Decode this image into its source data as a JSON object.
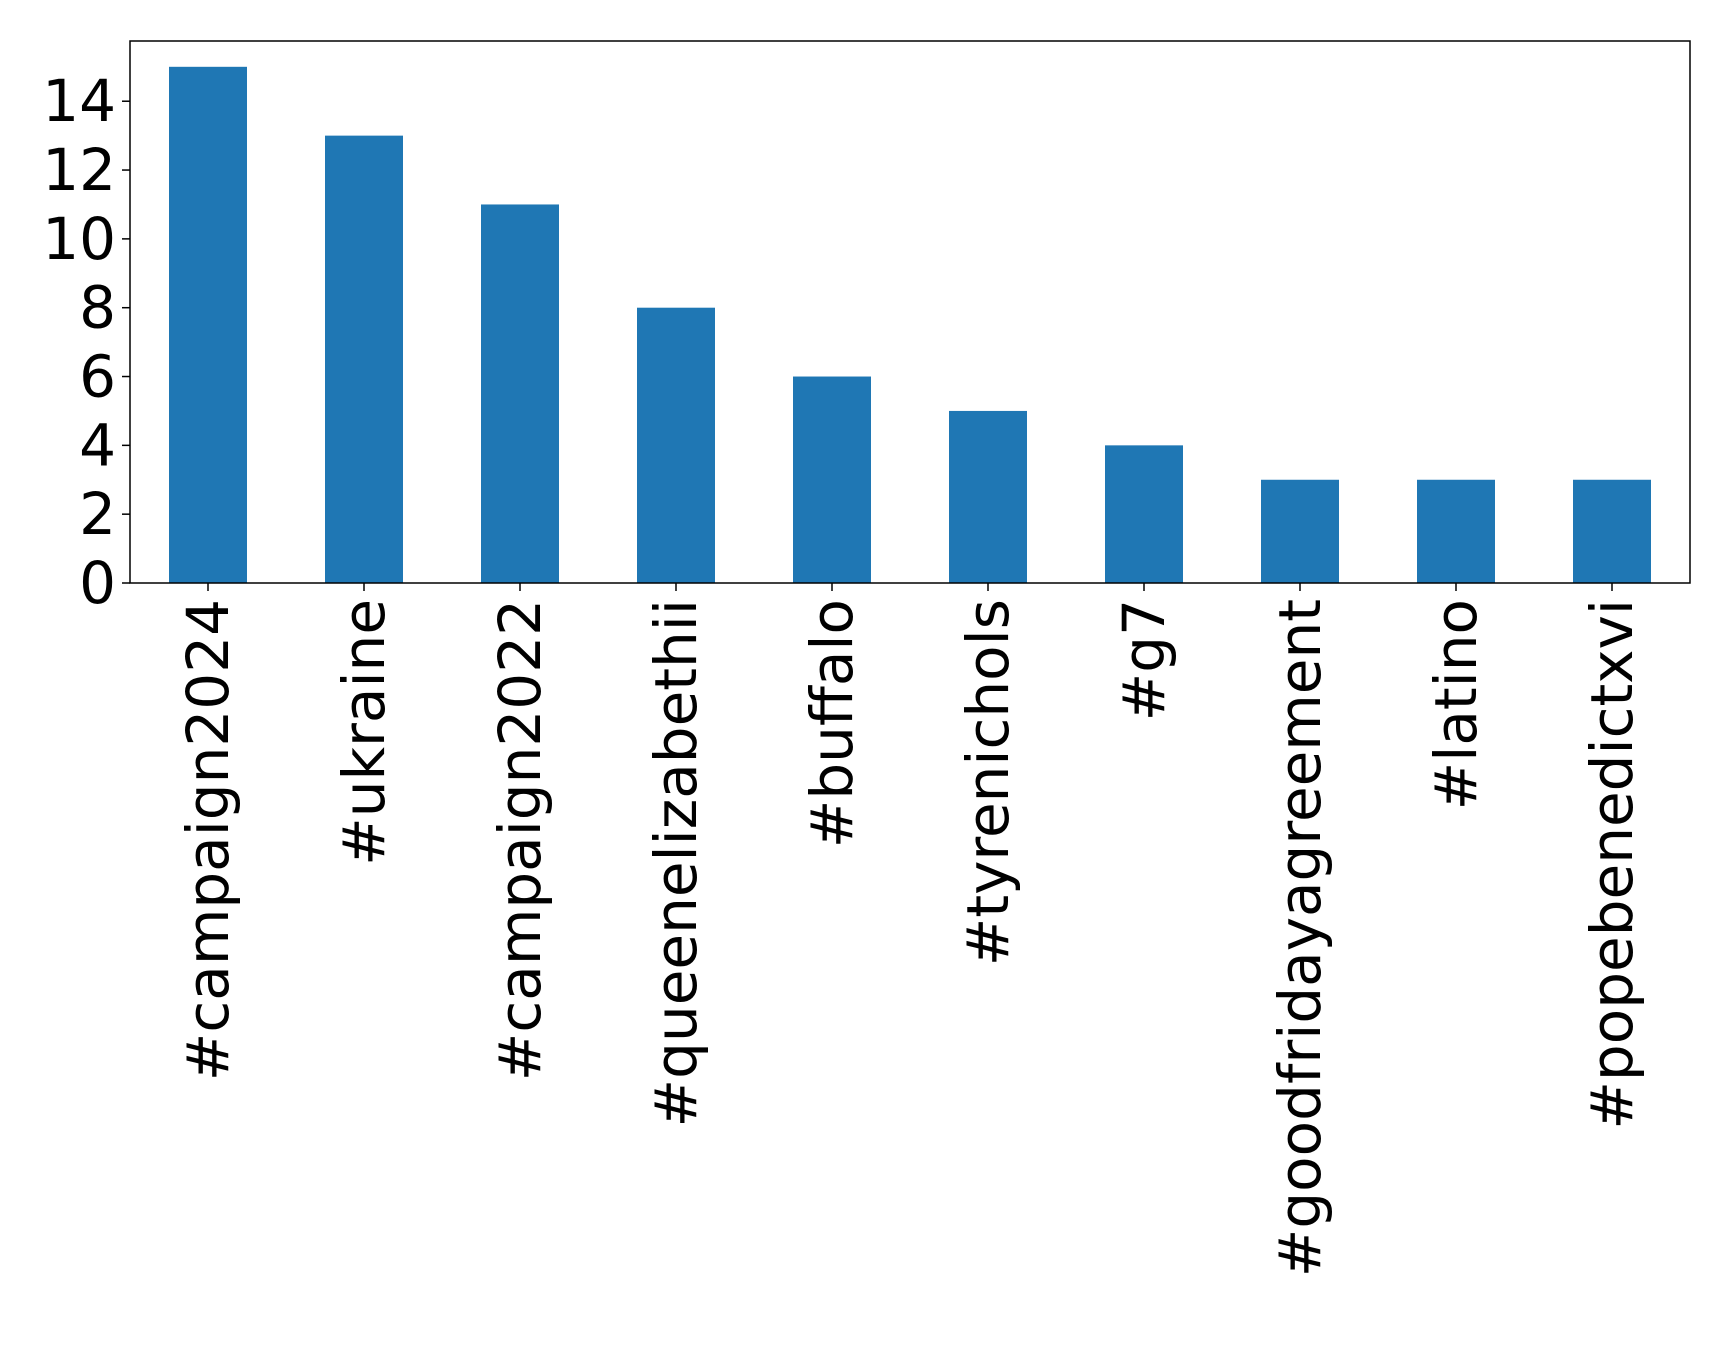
{
  "chart_data": {
    "type": "bar",
    "title": "",
    "xlabel": "",
    "ylabel": "",
    "categories": [
      "#campaign2024",
      "#ukraine",
      "#campaign2022",
      "#queenelizabethii",
      "#buffalo",
      "#tyrenichols",
      "#g7",
      "#goodfridayagreement",
      "#latino",
      "#popebenedictxvi"
    ],
    "values": [
      15,
      13,
      11,
      8,
      6,
      5,
      4,
      3,
      3,
      3
    ],
    "ylim": [
      0,
      15.75
    ],
    "yticks": [
      0,
      2,
      4,
      6,
      8,
      10,
      12,
      14
    ],
    "grid": false,
    "legend": "none",
    "colors": {
      "bar": "#1f77b4",
      "axis": "#000000",
      "background": "#ffffff"
    }
  }
}
